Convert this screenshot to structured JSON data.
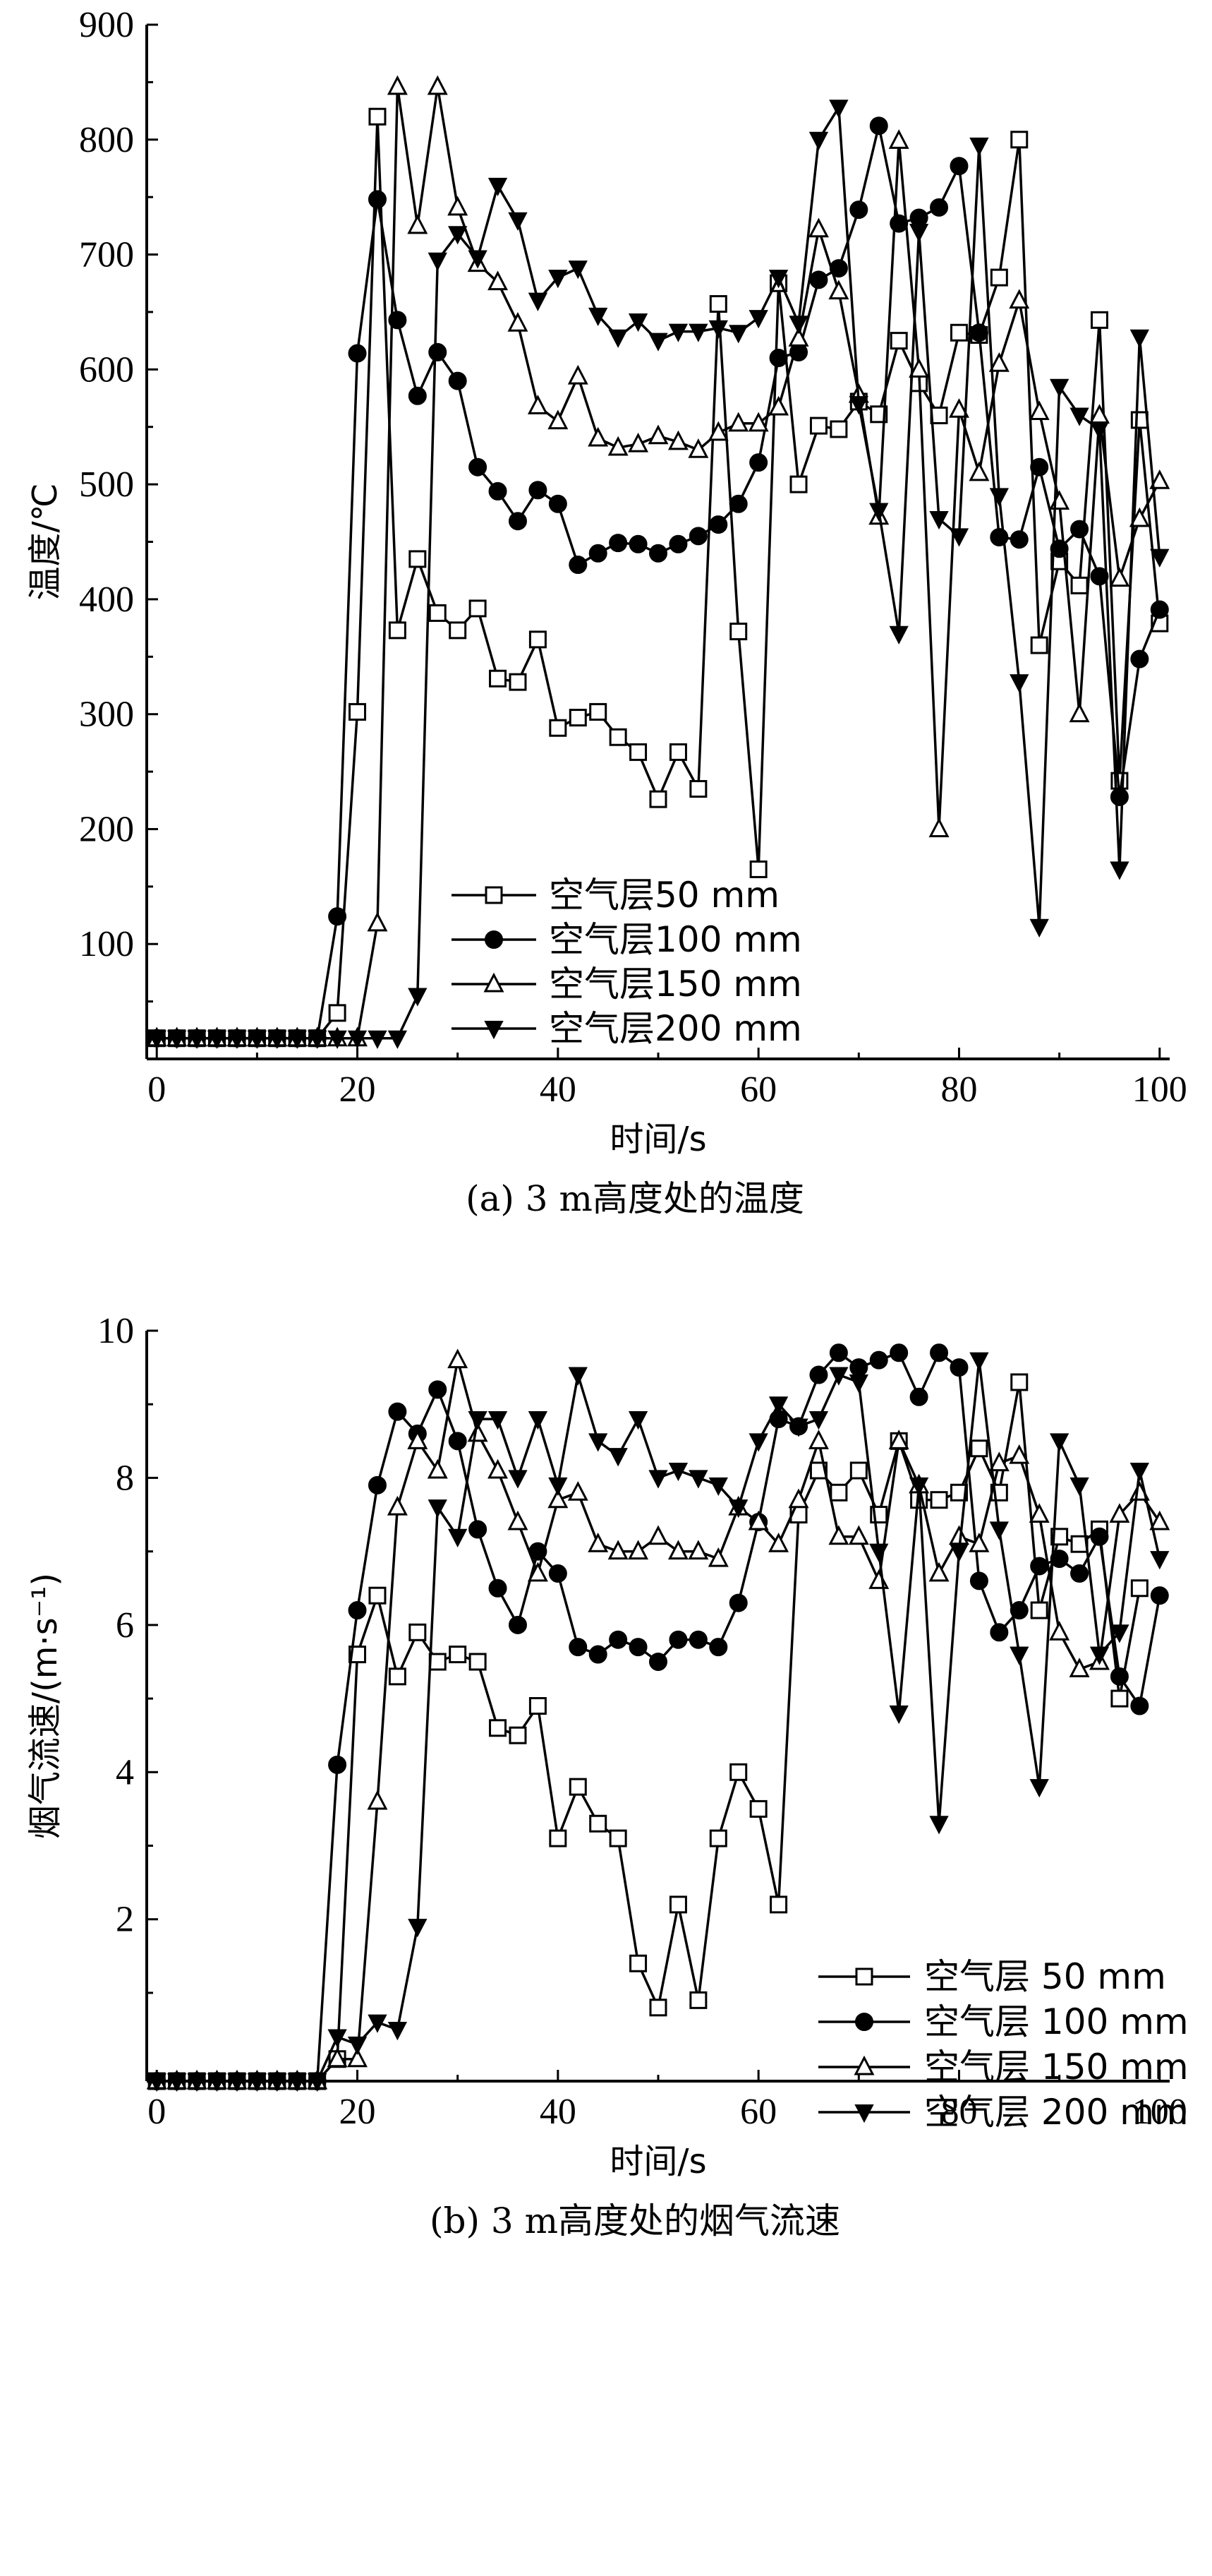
{
  "charts": [
    {
      "id": "a",
      "caption": "(a) 3 m高度处的温度",
      "chart_data": {
        "type": "line",
        "xlabel": "时间/s",
        "ylabel": "温度/℃",
        "xlim": [
          -1,
          101
        ],
        "ylim": [
          0,
          900
        ],
        "xticks": [
          0,
          20,
          40,
          60,
          80,
          100
        ],
        "yticks": [
          100,
          200,
          300,
          400,
          500,
          600,
          700,
          800,
          900
        ],
        "grid": false,
        "legend_position": "bottom-center",
        "series": [
          {
            "name": "空气层50 mm",
            "marker": "square-open",
            "x": [
              0,
              2,
              4,
              6,
              8,
              10,
              12,
              14,
              16,
              18,
              20,
              22,
              24,
              26,
              28,
              30,
              32,
              34,
              36,
              38,
              40,
              42,
              44,
              46,
              48,
              50,
              52,
              54,
              56,
              58,
              60,
              62,
              64,
              66,
              68,
              70,
              72,
              74,
              76,
              78,
              80,
              82,
              84,
              86,
              88,
              90,
              92,
              94,
              96,
              98,
              100
            ],
            "y": [
              18,
              18,
              18,
              18,
              18,
              18,
              18,
              18,
              18,
              40,
              302,
              820,
              373,
              435,
              388,
              373,
              392,
              331,
              328,
              365,
              288,
              297,
              302,
              280,
              267,
              226,
              267,
              235,
              657,
              372,
              165,
              675,
              500,
              551,
              548,
              572,
              561,
              625,
              588,
              560,
              632,
              630,
              680,
              800,
              360,
              433,
              412,
              643,
              242,
              556,
              379
            ]
          },
          {
            "name": "空气层100 mm",
            "marker": "circle-filled",
            "x": [
              0,
              2,
              4,
              6,
              8,
              10,
              12,
              14,
              16,
              18,
              20,
              22,
              24,
              26,
              28,
              30,
              32,
              34,
              36,
              38,
              40,
              42,
              44,
              46,
              48,
              50,
              52,
              54,
              56,
              58,
              60,
              62,
              64,
              66,
              68,
              70,
              72,
              74,
              76,
              78,
              80,
              82,
              84,
              86,
              88,
              90,
              92,
              94,
              96,
              98,
              100
            ],
            "y": [
              18,
              18,
              18,
              18,
              18,
              18,
              18,
              18,
              18,
              124,
              614,
              748,
              643,
              577,
              615,
              590,
              515,
              494,
              468,
              495,
              483,
              430,
              440,
              449,
              448,
              440,
              448,
              455,
              465,
              483,
              519,
              610,
              615,
              678,
              688,
              739,
              812,
              727,
              732,
              741,
              777,
              632,
              454,
              452,
              515,
              444,
              461,
              420,
              228,
              348,
              391
            ]
          },
          {
            "name": "空气层150 mm",
            "marker": "triangle-up-open",
            "x": [
              0,
              2,
              4,
              6,
              8,
              10,
              12,
              14,
              16,
              18,
              20,
              22,
              24,
              26,
              28,
              30,
              32,
              34,
              36,
              38,
              40,
              42,
              44,
              46,
              48,
              50,
              52,
              54,
              56,
              58,
              60,
              62,
              64,
              66,
              68,
              70,
              72,
              74,
              76,
              78,
              80,
              82,
              84,
              86,
              88,
              90,
              92,
              94,
              96,
              98,
              100
            ],
            "y": [
              18,
              18,
              18,
              18,
              18,
              18,
              18,
              18,
              18,
              18,
              18,
              118,
              846,
              725,
              846,
              741,
              692,
              676,
              640,
              568,
              555,
              594,
              540,
              532,
              535,
              542,
              537,
              530,
              545,
              553,
              553,
              567,
              627,
              722,
              668,
              578,
              472,
              799,
              600,
              200,
              565,
              510,
              605,
              660,
              563,
              485,
              300,
              560,
              418,
              470,
              503
            ]
          },
          {
            "name": "空气层200 mm",
            "marker": "triangle-down-filled",
            "x": [
              0,
              2,
              4,
              6,
              8,
              10,
              12,
              14,
              16,
              18,
              20,
              22,
              24,
              26,
              28,
              30,
              32,
              34,
              36,
              38,
              40,
              42,
              44,
              46,
              48,
              50,
              52,
              54,
              56,
              58,
              60,
              62,
              64,
              66,
              68,
              70,
              72,
              74,
              76,
              78,
              80,
              82,
              84,
              86,
              88,
              90,
              92,
              94,
              96,
              98,
              100
            ],
            "y": [
              18,
              18,
              18,
              18,
              18,
              18,
              18,
              18,
              18,
              18,
              18,
              18,
              18,
              55,
              695,
              718,
              697,
              760,
              730,
              660,
              680,
              688,
              647,
              628,
              642,
              625,
              633,
              633,
              636,
              632,
              645,
              680,
              640,
              800,
              828,
              570,
              477,
              370,
              720,
              470,
              455,
              795,
              490,
              328,
              115,
              585,
              560,
              548,
              165,
              628,
              437
            ]
          }
        ]
      }
    },
    {
      "id": "b",
      "caption": "(b) 3 m高度处的烟气流速",
      "chart_data": {
        "type": "line",
        "xlabel": "时间/s",
        "ylabel": "烟气流速/(m·s⁻¹)",
        "xlim": [
          -1,
          101
        ],
        "ylim": [
          -0.2,
          10
        ],
        "xticks": [
          0,
          20,
          40,
          60,
          80,
          100
        ],
        "yticks": [
          2,
          4,
          6,
          8,
          10
        ],
        "grid": false,
        "legend_position": "bottom-right",
        "series": [
          {
            "name": "空气层 50 mm",
            "marker": "square-open",
            "x": [
              0,
              2,
              4,
              6,
              8,
              10,
              12,
              14,
              16,
              18,
              20,
              22,
              24,
              26,
              28,
              30,
              32,
              34,
              36,
              38,
              40,
              42,
              44,
              46,
              48,
              50,
              52,
              54,
              56,
              58,
              60,
              62,
              64,
              66,
              68,
              70,
              72,
              74,
              76,
              78,
              80,
              82,
              84,
              86,
              88,
              90,
              92,
              94,
              96,
              98
            ],
            "y": [
              -0.2,
              -0.2,
              -0.2,
              -0.2,
              -0.2,
              -0.2,
              -0.2,
              -0.2,
              -0.2,
              0.1,
              5.6,
              6.4,
              5.3,
              5.9,
              5.5,
              5.6,
              5.5,
              4.6,
              4.5,
              4.9,
              3.1,
              3.8,
              3.3,
              3.1,
              1.4,
              0.8,
              2.2,
              0.9,
              3.1,
              4.0,
              3.5,
              2.2,
              7.5,
              8.1,
              7.8,
              8.1,
              7.5,
              8.5,
              7.7,
              7.7,
              7.8,
              8.4,
              7.8,
              9.3,
              6.2,
              7.2,
              7.1,
              7.3,
              5.0,
              6.5
            ]
          },
          {
            "name": "空气层 100 mm",
            "marker": "circle-filled",
            "x": [
              0,
              2,
              4,
              6,
              8,
              10,
              12,
              14,
              16,
              18,
              20,
              22,
              24,
              26,
              28,
              30,
              32,
              34,
              36,
              38,
              40,
              42,
              44,
              46,
              48,
              50,
              52,
              54,
              56,
              58,
              60,
              62,
              64,
              66,
              68,
              70,
              72,
              74,
              76,
              78,
              80,
              82,
              84,
              86,
              88,
              90,
              92,
              94,
              96,
              98,
              100
            ],
            "y": [
              -0.2,
              -0.2,
              -0.2,
              -0.2,
              -0.2,
              -0.2,
              -0.2,
              -0.2,
              -0.2,
              4.1,
              6.2,
              7.9,
              8.9,
              8.6,
              9.2,
              8.5,
              7.3,
              6.5,
              6.0,
              7.0,
              6.7,
              5.7,
              5.6,
              5.8,
              5.7,
              5.5,
              5.8,
              5.8,
              5.7,
              6.3,
              7.4,
              8.8,
              8.7,
              9.4,
              9.7,
              9.5,
              9.6,
              9.7,
              9.1,
              9.7,
              9.5,
              6.6,
              5.9,
              6.2,
              6.8,
              6.9,
              6.7,
              7.2,
              5.3,
              4.9,
              6.4
            ]
          },
          {
            "name": "空气层 150 mm",
            "marker": "triangle-up-open",
            "x": [
              0,
              2,
              4,
              6,
              8,
              10,
              12,
              14,
              16,
              18,
              20,
              22,
              24,
              26,
              28,
              30,
              32,
              34,
              36,
              38,
              40,
              42,
              44,
              46,
              48,
              50,
              52,
              54,
              56,
              58,
              60,
              62,
              64,
              66,
              68,
              70,
              72,
              74,
              76,
              78,
              80,
              82,
              84,
              86,
              88,
              90,
              92,
              94,
              96,
              98,
              100
            ],
            "y": [
              -0.2,
              -0.2,
              -0.2,
              -0.2,
              -0.2,
              -0.2,
              -0.2,
              -0.2,
              -0.2,
              0.1,
              0.1,
              3.6,
              7.6,
              8.5,
              8.1,
              9.6,
              8.6,
              8.1,
              7.4,
              6.7,
              7.7,
              7.8,
              7.1,
              7.0,
              7.0,
              7.2,
              7.0,
              7.0,
              6.9,
              7.6,
              7.4,
              7.1,
              7.7,
              8.5,
              7.2,
              7.2,
              6.6,
              8.5,
              7.9,
              6.7,
              7.2,
              7.1,
              8.2,
              8.3,
              7.5,
              5.9,
              5.4,
              5.5,
              7.5,
              7.8,
              7.4
            ]
          },
          {
            "name": "空气层 200 mm",
            "marker": "triangle-down-filled",
            "x": [
              0,
              2,
              4,
              6,
              8,
              10,
              12,
              14,
              16,
              18,
              20,
              22,
              24,
              26,
              28,
              30,
              32,
              34,
              36,
              38,
              40,
              42,
              44,
              46,
              48,
              50,
              52,
              54,
              56,
              58,
              60,
              62,
              64,
              66,
              68,
              70,
              72,
              74,
              76,
              78,
              80,
              82,
              84,
              86,
              88,
              90,
              92,
              94,
              96,
              98,
              100
            ],
            "y": [
              -0.2,
              -0.2,
              -0.2,
              -0.2,
              -0.2,
              -0.2,
              -0.2,
              -0.2,
              -0.2,
              0.4,
              0.3,
              0.6,
              0.5,
              1.9,
              7.6,
              7.2,
              8.8,
              8.8,
              8.0,
              8.8,
              7.9,
              9.4,
              8.5,
              8.3,
              8.8,
              8.0,
              8.1,
              8.0,
              7.9,
              7.6,
              8.5,
              9.0,
              8.7,
              8.8,
              9.4,
              9.3,
              7.0,
              4.8,
              7.9,
              3.3,
              7.0,
              9.6,
              7.3,
              5.6,
              3.8,
              8.5,
              7.9,
              5.6,
              5.9,
              8.1,
              6.9
            ]
          }
        ]
      }
    }
  ]
}
